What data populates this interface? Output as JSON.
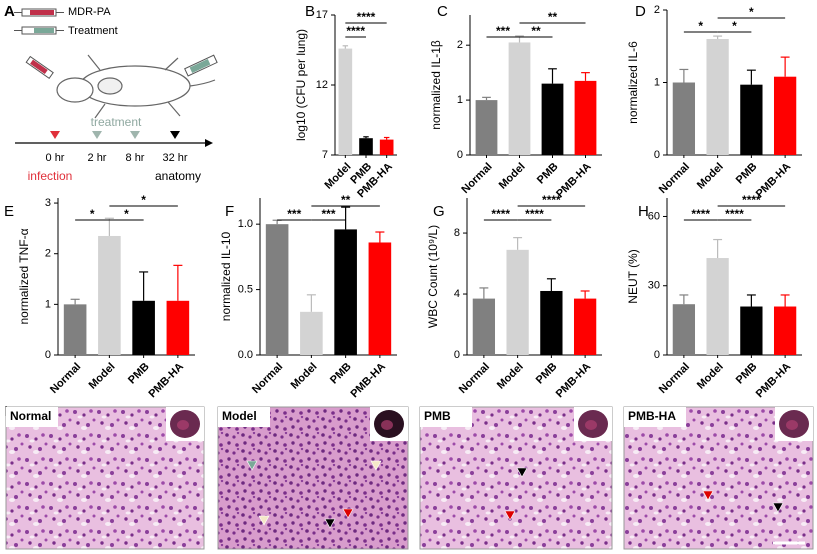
{
  "panel_a": {
    "panel": "A",
    "legend": [
      "MDR-PA",
      "Treatment"
    ],
    "phase": "treatment",
    "times": [
      "0 hr",
      "2 hr",
      "8 hr",
      "32 hr"
    ],
    "events": [
      "infection",
      "anatomy"
    ]
  },
  "chart_data": [
    {
      "panel": "B",
      "type": "bar",
      "ylabel": "log10 (CFU per lung)",
      "categories": [
        "Model",
        "PMB",
        "PMB-HA"
      ],
      "values": [
        14.6,
        8.2,
        8.1
      ],
      "errors": [
        0.2,
        0.1,
        0.15
      ],
      "colors": [
        "#d3d3d3",
        "#000000",
        "#ff0000"
      ],
      "ylim": [
        7,
        17
      ],
      "yticks": [
        7,
        12,
        17
      ],
      "significance": [
        {
          "between": [
            "Model",
            "PMB-HA"
          ],
          "label": "****"
        },
        {
          "between": [
            "Model",
            "PMB"
          ],
          "label": "****"
        }
      ]
    },
    {
      "panel": "C",
      "type": "bar",
      "ylabel": "normalized IL-1β",
      "categories": [
        "Normal",
        "Model",
        "PMB",
        "PMB-HA"
      ],
      "values": [
        1.0,
        2.05,
        1.3,
        1.35
      ],
      "errors": [
        0.05,
        0.12,
        0.27,
        0.15
      ],
      "colors": [
        "#808080",
        "#d3d3d3",
        "#000000",
        "#ff0000"
      ],
      "ylim": [
        0,
        2.55
      ],
      "yticks": [
        0,
        1,
        2
      ],
      "significance": [
        {
          "between": [
            "Normal",
            "Model"
          ],
          "label": "***"
        },
        {
          "between": [
            "Model",
            "PMB"
          ],
          "label": "**"
        },
        {
          "between": [
            "Model",
            "PMB-HA"
          ],
          "label": "**"
        }
      ]
    },
    {
      "panel": "D",
      "type": "bar",
      "ylabel": "normalized IL-6",
      "categories": [
        "Normal",
        "Model",
        "PMB",
        "PMB-HA"
      ],
      "values": [
        1.0,
        1.6,
        0.97,
        1.08
      ],
      "errors": [
        0.18,
        0.04,
        0.2,
        0.27
      ],
      "colors": [
        "#808080",
        "#d3d3d3",
        "#000000",
        "#ff0000"
      ],
      "ylim": [
        0,
        2
      ],
      "yticks": [
        0,
        1,
        2
      ],
      "significance": [
        {
          "between": [
            "Normal",
            "Model"
          ],
          "label": "*"
        },
        {
          "between": [
            "Model",
            "PMB"
          ],
          "label": "*"
        },
        {
          "between": [
            "Model",
            "PMB-HA"
          ],
          "label": "*"
        }
      ]
    },
    {
      "panel": "E",
      "type": "bar",
      "ylabel": "normalized TNF-α",
      "categories": [
        "Normal",
        "Model",
        "PMB",
        "PMB-HA"
      ],
      "values": [
        1.0,
        2.35,
        1.07,
        1.07
      ],
      "errors": [
        0.1,
        0.35,
        0.57,
        0.7
      ],
      "colors": [
        "#808080",
        "#d3d3d3",
        "#000000",
        "#ff0000"
      ],
      "ylim": [
        0,
        3.1
      ],
      "yticks": [
        0,
        1,
        2,
        3
      ],
      "significance": [
        {
          "between": [
            "Normal",
            "Model"
          ],
          "label": "*"
        },
        {
          "between": [
            "Model",
            "PMB"
          ],
          "label": "*"
        },
        {
          "between": [
            "Model",
            "PMB-HA"
          ],
          "label": "*"
        }
      ]
    },
    {
      "panel": "F",
      "type": "bar",
      "ylabel": "normalized IL-10",
      "categories": [
        "Normal",
        "Model",
        "PMB",
        "PMB-HA"
      ],
      "values": [
        1.0,
        0.33,
        0.96,
        0.86
      ],
      "errors": [
        0.03,
        0.13,
        0.17,
        0.08
      ],
      "colors": [
        "#808080",
        "#d3d3d3",
        "#000000",
        "#ff0000"
      ],
      "ylim": [
        0,
        1.2
      ],
      "yticks": [
        {
          "value": 0,
          "label": "0.0"
        },
        {
          "value": 0.5,
          "label": "0.5"
        },
        {
          "value": 1,
          "label": "1.0"
        }
      ],
      "significance": [
        {
          "between": [
            "Normal",
            "Model"
          ],
          "label": "***"
        },
        {
          "between": [
            "Model",
            "PMB"
          ],
          "label": "***"
        },
        {
          "between": [
            "Model",
            "PMB-HA"
          ],
          "label": "**"
        }
      ]
    },
    {
      "panel": "G",
      "type": "bar",
      "ylabel": "WBC Count (10⁹/L)",
      "categories": [
        "Normal",
        "Model",
        "PMB",
        "PMB-HA"
      ],
      "values": [
        3.7,
        6.9,
        4.2,
        3.7
      ],
      "errors": [
        0.7,
        0.8,
        0.8,
        0.5
      ],
      "colors": [
        "#808080",
        "#d3d3d3",
        "#000000",
        "#ff0000"
      ],
      "ylim": [
        0,
        10.3
      ],
      "yticks": [
        0,
        4,
        8
      ],
      "significance": [
        {
          "between": [
            "Normal",
            "Model"
          ],
          "label": "****"
        },
        {
          "between": [
            "Model",
            "PMB"
          ],
          "label": "****"
        },
        {
          "between": [
            "Model",
            "PMB-HA"
          ],
          "label": "****"
        }
      ]
    },
    {
      "panel": "H",
      "type": "bar",
      "ylabel": "NEUT (%)",
      "categories": [
        "Normal",
        "Model",
        "PMB",
        "PMB-HA"
      ],
      "values": [
        22,
        42,
        21,
        21
      ],
      "errors": [
        4,
        8,
        5,
        5
      ],
      "colors": [
        "#808080",
        "#d3d3d3",
        "#000000",
        "#ff0000"
      ],
      "ylim": [
        0,
        68
      ],
      "yticks": [
        0,
        30,
        60
      ],
      "significance": [
        {
          "between": [
            "Normal",
            "Model"
          ],
          "label": "****"
        },
        {
          "between": [
            "Model",
            "PMB"
          ],
          "label": "****"
        },
        {
          "between": [
            "Model",
            "PMB-HA"
          ],
          "label": "****"
        }
      ]
    }
  ],
  "panel_i": {
    "panel": "I",
    "images": [
      "Normal",
      "Model",
      "PMB",
      "PMB-HA"
    ]
  }
}
